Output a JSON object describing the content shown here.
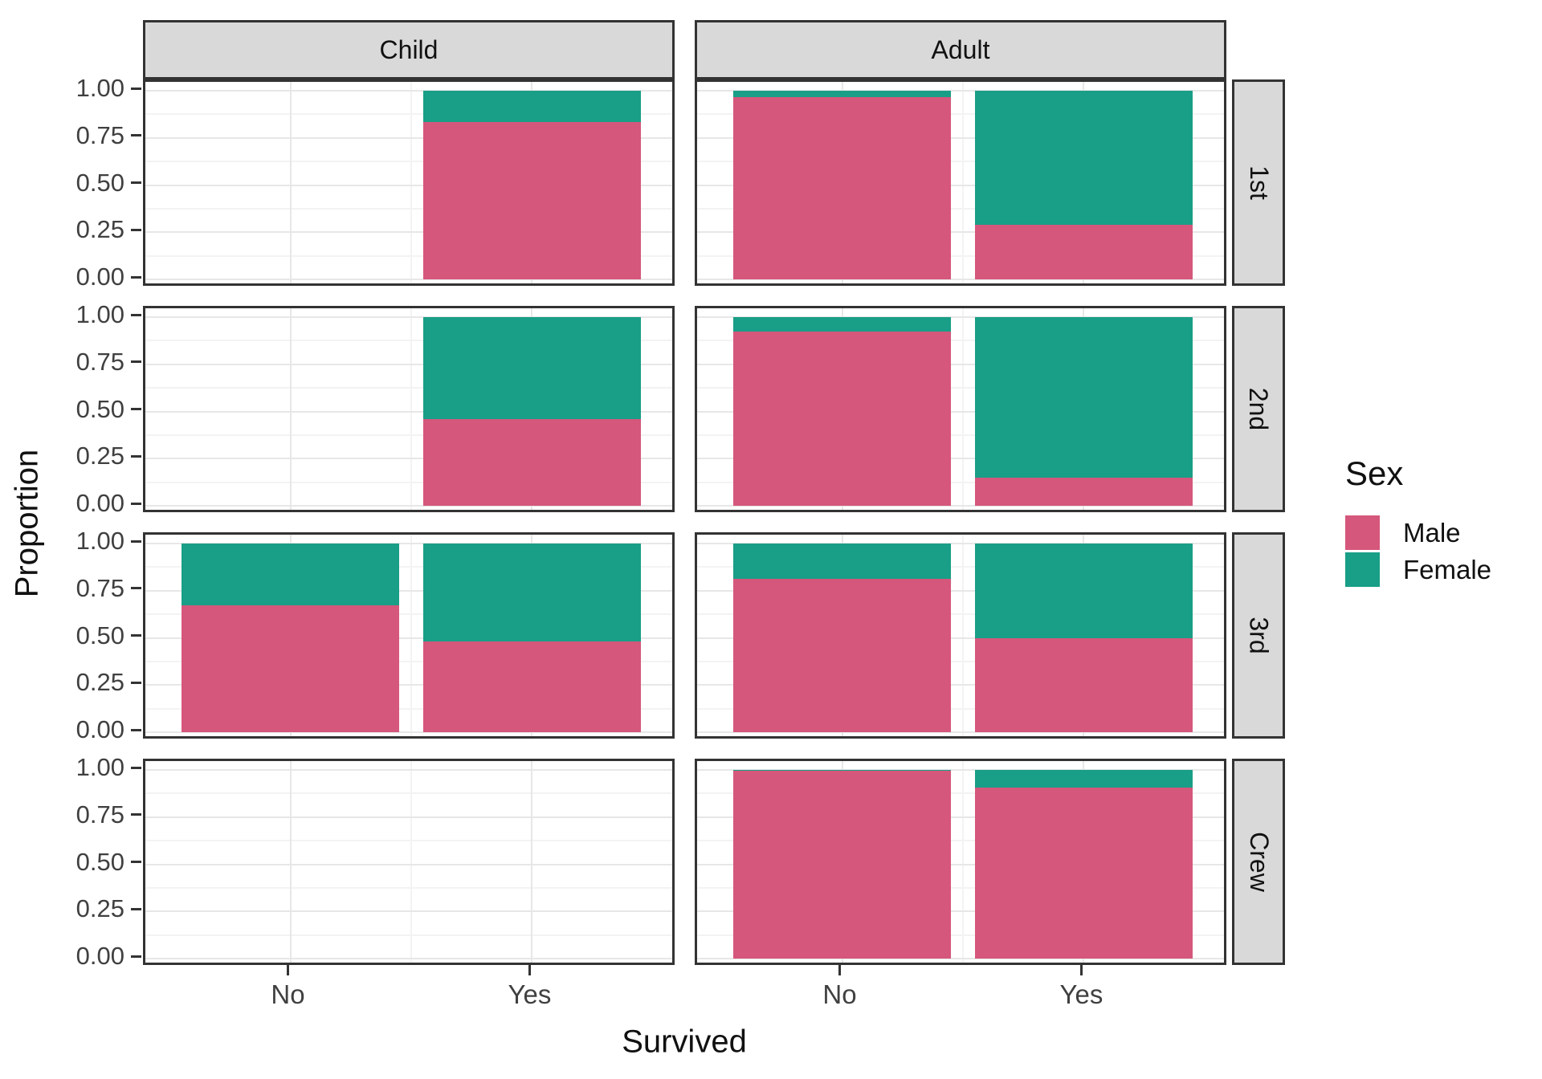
{
  "chart_data": {
    "type": "bar",
    "stacking": "fill",
    "title": "",
    "xlabel": "Survived",
    "ylabel": "Proportion",
    "col_facets": [
      "Child",
      "Adult"
    ],
    "row_facets": [
      "1st",
      "2nd",
      "3rd",
      "Crew"
    ],
    "categories": [
      "No",
      "Yes"
    ],
    "y_ticks": [
      "1.00",
      "0.75",
      "0.50",
      "0.25",
      "0.00"
    ],
    "ylim": [
      0,
      1
    ],
    "grid": "major and minor horizontal and vertical gridlines",
    "legend": {
      "title": "Sex",
      "position": "right",
      "entries": [
        {
          "label": "Male",
          "color": "#D5577B"
        },
        {
          "label": "Female",
          "color": "#199E87"
        }
      ]
    },
    "panels": [
      {
        "col": "Child",
        "row": "1st",
        "bars": [
          {
            "category": "No",
            "Male": null,
            "Female": null
          },
          {
            "category": "Yes",
            "Male": 0.833,
            "Female": 0.167
          }
        ]
      },
      {
        "col": "Child",
        "row": "2nd",
        "bars": [
          {
            "category": "No",
            "Male": null,
            "Female": null
          },
          {
            "category": "Yes",
            "Male": 0.458,
            "Female": 0.542
          }
        ]
      },
      {
        "col": "Child",
        "row": "3rd",
        "bars": [
          {
            "category": "No",
            "Male": 0.673,
            "Female": 0.327
          },
          {
            "category": "Yes",
            "Male": 0.481,
            "Female": 0.519
          }
        ]
      },
      {
        "col": "Child",
        "row": "Crew",
        "bars": [
          {
            "category": "No",
            "Male": null,
            "Female": null
          },
          {
            "category": "Yes",
            "Male": null,
            "Female": null
          }
        ]
      },
      {
        "col": "Adult",
        "row": "1st",
        "bars": [
          {
            "category": "No",
            "Male": 0.967,
            "Female": 0.033
          },
          {
            "category": "Yes",
            "Male": 0.289,
            "Female": 0.711
          }
        ]
      },
      {
        "col": "Adult",
        "row": "2nd",
        "bars": [
          {
            "category": "No",
            "Male": 0.922,
            "Female": 0.078
          },
          {
            "category": "Yes",
            "Male": 0.149,
            "Female": 0.851
          }
        ]
      },
      {
        "col": "Adult",
        "row": "3rd",
        "bars": [
          {
            "category": "No",
            "Male": 0.813,
            "Female": 0.187
          },
          {
            "category": "Yes",
            "Male": 0.497,
            "Female": 0.503
          }
        ]
      },
      {
        "col": "Adult",
        "row": "Crew",
        "bars": [
          {
            "category": "No",
            "Male": 0.996,
            "Female": 0.004
          },
          {
            "category": "Yes",
            "Male": 0.906,
            "Female": 0.094
          }
        ]
      }
    ],
    "colors": {
      "male": "#D5577B",
      "female": "#199E87",
      "strip_fill": "#D9D9D9",
      "panel_border": "#333333",
      "grid_major": "#E7E7E7",
      "grid_minor": "#F3F3F3",
      "axis_text": "#404040",
      "tick_mark": "#333333"
    }
  }
}
